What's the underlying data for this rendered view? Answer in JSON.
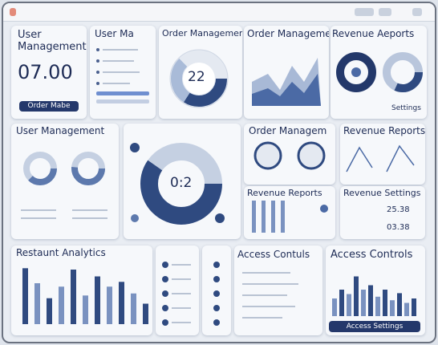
{
  "user_card": {
    "title": "User Management",
    "value": "07.00",
    "button": "Order Mabe"
  },
  "user_list": {
    "title": "User Ma"
  },
  "order_donut": {
    "title": "Order Management",
    "value": "22"
  },
  "order_chart": {
    "title": "Order Management"
  },
  "revenue_card": {
    "title": "Revenue Aeports",
    "button": "Settings"
  },
  "user_donuts": {
    "title": "User Management"
  },
  "center_donut": {
    "value": "0:2"
  },
  "order_icons": {
    "title": "Order Managem"
  },
  "revenue_reports": {
    "title": "Revenue Reports"
  },
  "revenue_bars": {
    "title": "Revenue Reports"
  },
  "revenue_settings": {
    "title": "Revenue Settings",
    "values": [
      "25.38",
      "03.38"
    ]
  },
  "analytics": {
    "title": "Restaunt Analytics",
    "bars": [
      82,
      60,
      38,
      55,
      80,
      42,
      70,
      55,
      62,
      45,
      30
    ]
  },
  "access_list": {
    "title": "Access Contuls"
  },
  "access_chart": {
    "title": "Access Controls",
    "bars": [
      20,
      30,
      25,
      45,
      30,
      35,
      22,
      30,
      18,
      26,
      15,
      20
    ],
    "button": "Access Settings"
  }
}
